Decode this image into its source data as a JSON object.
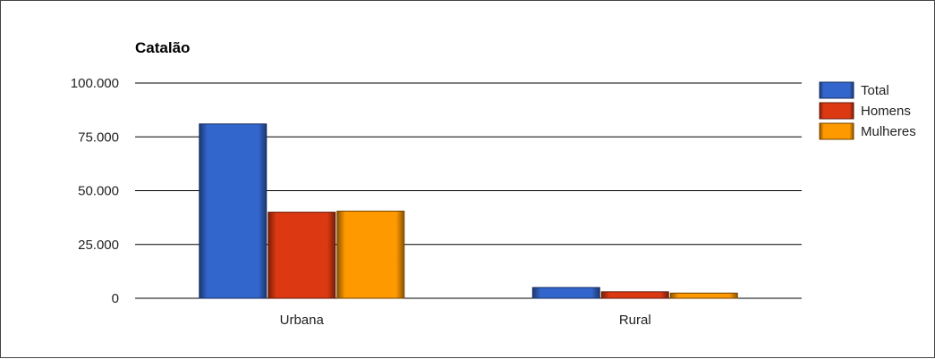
{
  "chart_data": {
    "type": "bar",
    "title": "Catalão",
    "xlabel": "",
    "ylabel": "",
    "categories": [
      "Urbana",
      "Rural"
    ],
    "series": [
      {
        "name": "Total",
        "values": [
          81000,
          5000
        ],
        "color": "#3366cc"
      },
      {
        "name": "Homens",
        "values": [
          40000,
          3000
        ],
        "color": "#dc3912"
      },
      {
        "name": "Mulheres",
        "values": [
          40500,
          2400
        ],
        "color": "#ff9900"
      }
    ],
    "ylim": [
      0,
      100000
    ],
    "yticks": [
      {
        "value": 0,
        "label": "0"
      },
      {
        "value": 25000,
        "label": "25.000"
      },
      {
        "value": 50000,
        "label": "50.000"
      },
      {
        "value": 75000,
        "label": "75.000"
      },
      {
        "value": 100000,
        "label": "100.000"
      }
    ],
    "grid": true,
    "legend_position": "right"
  }
}
